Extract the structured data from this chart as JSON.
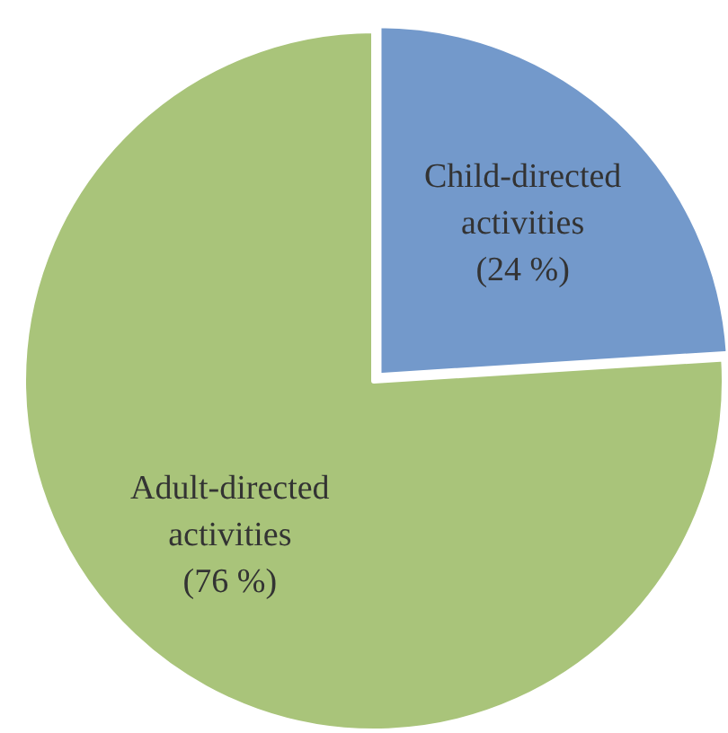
{
  "chart_data": {
    "type": "pie",
    "categories": [
      "Child-directed activities",
      "Adult-directed activities"
    ],
    "values": [
      24,
      76
    ],
    "colors": [
      "#7399cb",
      "#a9c47a"
    ],
    "value_labels": [
      "(24 %)",
      "(76 %)"
    ]
  }
}
